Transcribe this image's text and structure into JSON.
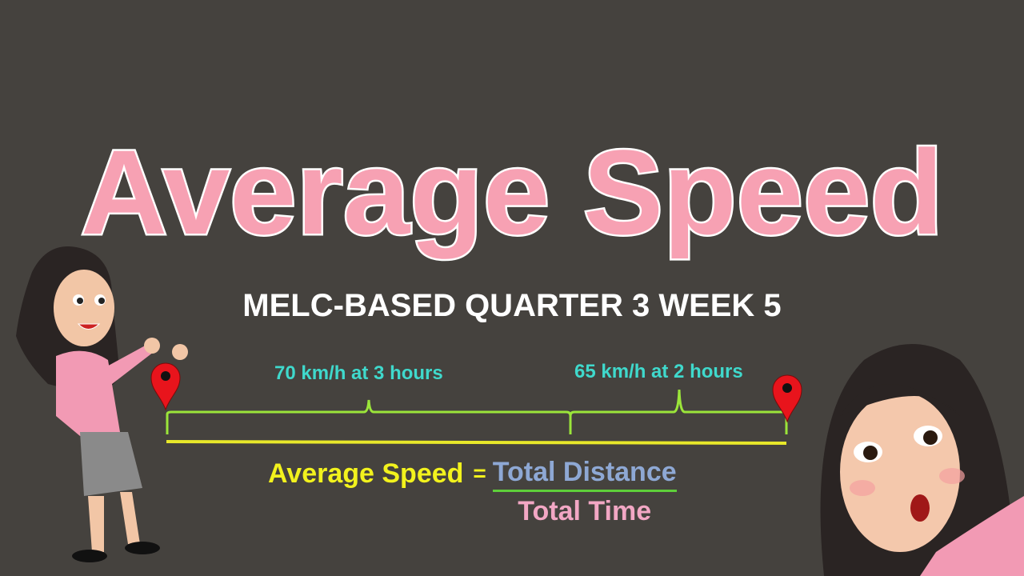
{
  "title": "Average Speed",
  "subtitle": "MELC-BASED QUARTER 3 WEEK 5",
  "segments": [
    {
      "label": "70 km/h at 3 hours"
    },
    {
      "label": "65 km/h at 2 hours"
    }
  ],
  "formula": {
    "lhs": "Average Speed",
    "equals": "=",
    "numerator": "Total Distance",
    "denominator": "Total Time"
  },
  "colors": {
    "background": "#45423e",
    "title": "#f7a1b3",
    "segment_text": "#3fd9cc",
    "brace": "#9be53a",
    "road": "#e8e82a",
    "lhs": "#f2f21d",
    "numerator": "#8ea8d4",
    "denominator": "#f2a7c4",
    "pin": "#e8141c"
  }
}
